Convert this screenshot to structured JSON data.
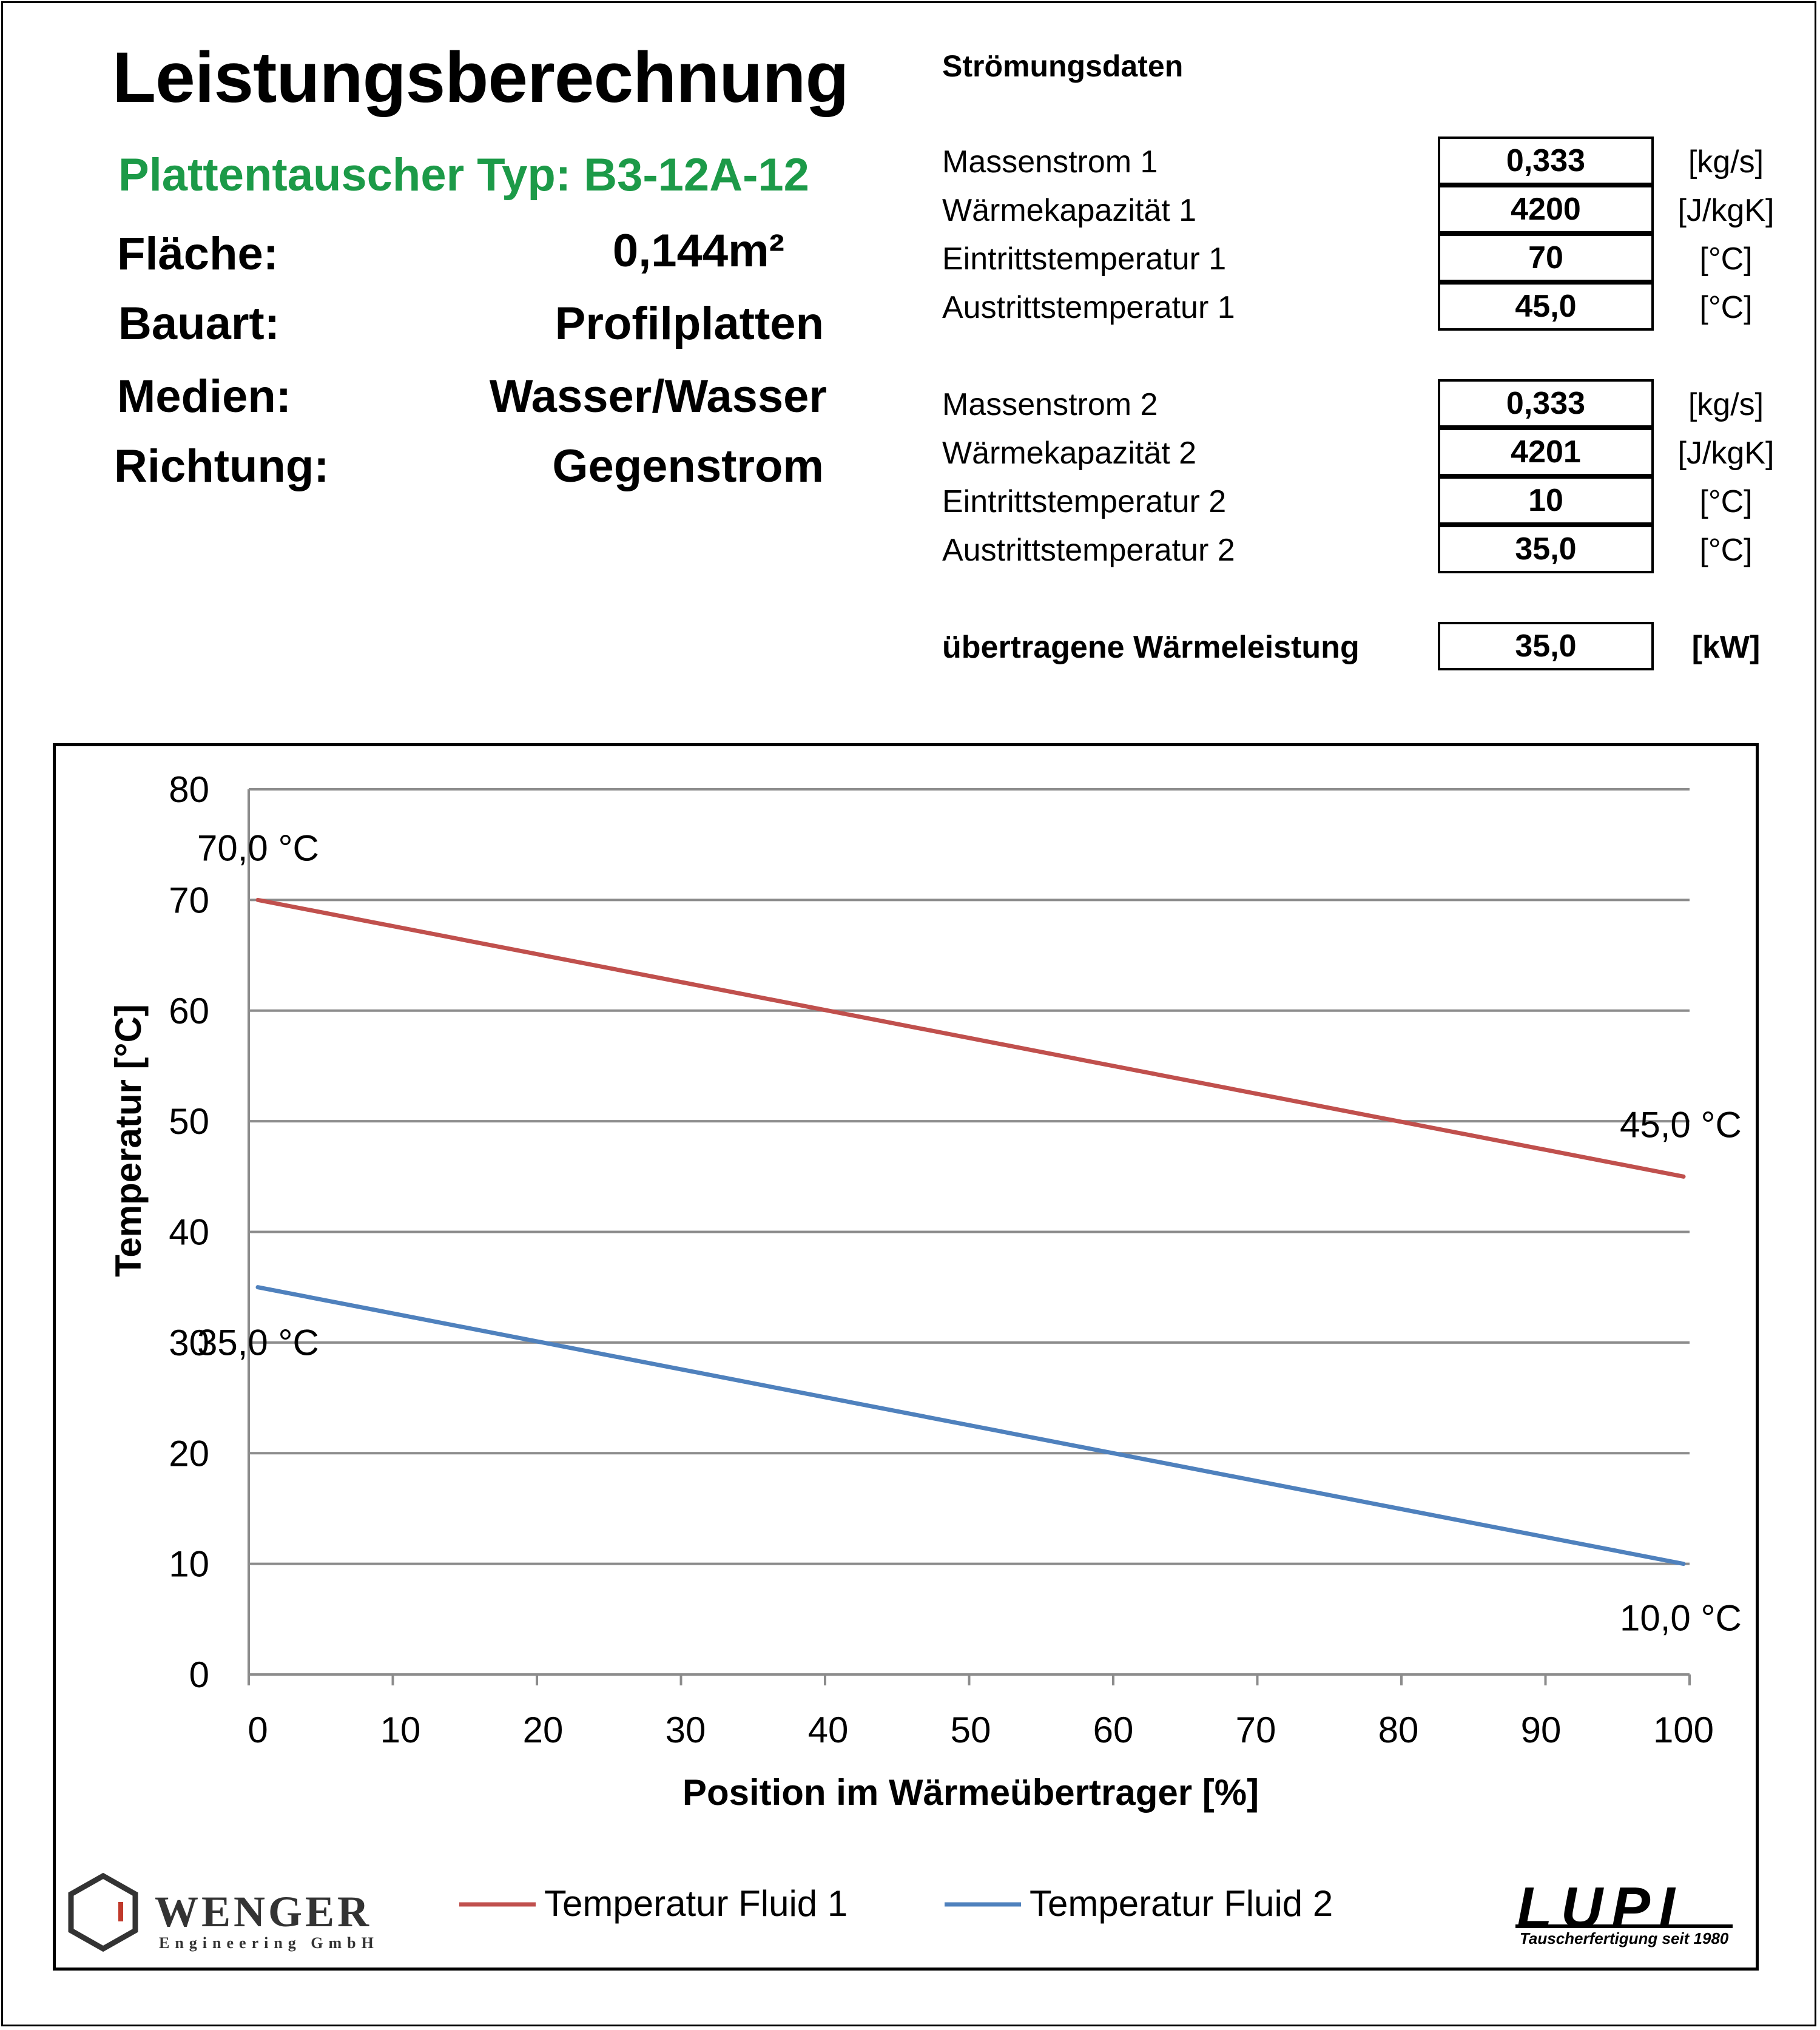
{
  "header": {
    "title": "Leistungsberechnung",
    "type_line": "Plattentauscher Typ:  B3-12A-12",
    "properties": [
      {
        "label": "Fläche:",
        "value": "0,144m²"
      },
      {
        "label": "Bauart:",
        "value": "Profilplatten"
      },
      {
        "label": "Medien:",
        "value": "Wasser/Wasser"
      },
      {
        "label": "Richtung:",
        "value": "Gegenstrom"
      }
    ]
  },
  "flow_data": {
    "heading": "Strömungsdaten",
    "rows": [
      {
        "label": "Massenstrom 1",
        "value": "0,333",
        "unit": "[kg/s]"
      },
      {
        "label": "Wärmekapazität 1",
        "value": "4200",
        "unit": "[J/kgK]"
      },
      {
        "label": "Eintrittstemperatur 1",
        "value": "70",
        "unit": "[°C]"
      },
      {
        "label": "Austrittstemperatur 1",
        "value": "45,0",
        "unit": "[°C]"
      },
      {
        "label": "Massenstrom 2",
        "value": "0,333",
        "unit": "[kg/s]"
      },
      {
        "label": "Wärmekapazität 2",
        "value": "4201",
        "unit": "[J/kgK]"
      },
      {
        "label": "Eintrittstemperatur 2",
        "value": "10",
        "unit": "[°C]"
      },
      {
        "label": "Austrittstemperatur 2",
        "value": "35,0",
        "unit": "[°C]"
      }
    ],
    "result": {
      "label": "übertragene Wärmeleistung",
      "value": "35,0",
      "unit": "[kW]"
    }
  },
  "chart_data": {
    "type": "line",
    "xlabel": "Position im Wärmeübertrager [%]",
    "ylabel": "Temperatur [°C]",
    "xlim": [
      0,
      100
    ],
    "ylim": [
      0,
      80
    ],
    "xticks": [
      0,
      10,
      20,
      30,
      40,
      50,
      60,
      70,
      80,
      90,
      100
    ],
    "yticks": [
      0,
      10,
      20,
      30,
      40,
      50,
      60,
      70,
      80
    ],
    "grid": "horizontal",
    "legend_position": "bottom",
    "series": [
      {
        "name": "Temperatur Fluid 1",
        "color": "#c0504d",
        "x": [
          0,
          100
        ],
        "y": [
          70,
          45
        ],
        "start_label": "70,0 °C",
        "end_label": "45,0 °C"
      },
      {
        "name": "Temperatur Fluid 2",
        "color": "#4f81bd",
        "x": [
          0,
          100
        ],
        "y": [
          35,
          10
        ],
        "start_label": "35,0 °C",
        "end_label": "10,0 °C"
      }
    ]
  },
  "logos": {
    "wenger_name": "WENGER",
    "wenger_sub": "Engineering GmbH",
    "lupi_name": "LUPI",
    "lupi_sub": "Tauscherfertigung seit 1980",
    "wenger_color": "#333333",
    "wenger_accent": "#c0392b"
  }
}
